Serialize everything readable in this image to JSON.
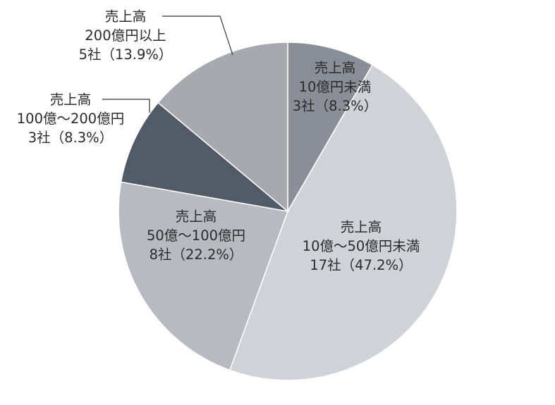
{
  "chart_data": {
    "type": "pie",
    "slices": [
      {
        "lines": [
          "売上高",
          "10億円未満",
          "3社（8.3%）"
        ],
        "count": 3,
        "percent": 8.3,
        "color": "#8a8f97"
      },
      {
        "lines": [
          "売上高",
          "10億～50億円未満",
          "17社（47.2%）"
        ],
        "count": 17,
        "percent": 47.2,
        "color": "#cfd3d7"
      },
      {
        "lines": [
          "売上高",
          "50億～100億円",
          "8社（22.2%）"
        ],
        "count": 8,
        "percent": 22.2,
        "color": "#b7bac0"
      },
      {
        "lines": [
          "売上高",
          "100億～200億円",
          "3社（8.3%）"
        ],
        "count": 3,
        "percent": 8.3,
        "color": "#525a66"
      },
      {
        "lines": [
          "売上高",
          "200億円以上",
          "5社（13.9%）"
        ],
        "count": 5,
        "percent": 13.9,
        "color": "#a6aaaf"
      }
    ]
  }
}
